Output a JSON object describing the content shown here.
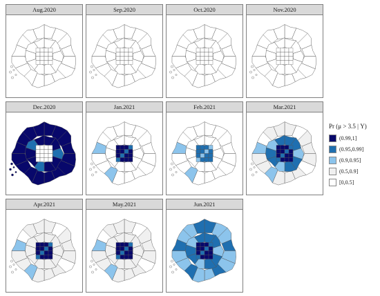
{
  "legend": {
    "title": "Pr (μ > 3.5 | Y)",
    "items": [
      {
        "label": "(0.99,1]",
        "color": "#08086b"
      },
      {
        "label": "(0.95,0.99]",
        "color": "#1f6fb0"
      },
      {
        "label": "(0.9,0.95]",
        "color": "#8cc4ec"
      },
      {
        "label": "(0.5,0.9]",
        "color": "#f0f0f0"
      },
      {
        "label": "[0,0.5]",
        "color": "#ffffff"
      }
    ]
  },
  "panels": [
    {
      "title": "Aug.2020",
      "levels": {
        "outer": 0,
        "ring": 0,
        "center": 0,
        "periph": 0
      }
    },
    {
      "title": "Sep.2020",
      "levels": {
        "outer": 0,
        "ring": 0,
        "center": 0,
        "periph": 0
      }
    },
    {
      "title": "Oct.2020",
      "levels": {
        "outer": 0,
        "ring": 0,
        "center": 0,
        "periph": 0
      }
    },
    {
      "title": "Nov.2020",
      "levels": {
        "outer": 0,
        "ring": 0,
        "center": 0,
        "periph": 0
      }
    },
    {
      "title": "Dec.2020",
      "levels": {
        "outer": 4,
        "ring": 4,
        "center": 0,
        "periph": 3
      }
    },
    {
      "title": "Jan.2021",
      "levels": {
        "outer": 0,
        "ring": 0,
        "center": 4,
        "periph": 2
      }
    },
    {
      "title": "Feb.2021",
      "levels": {
        "outer": 0,
        "ring": 0,
        "center": 3,
        "periph": 2
      }
    },
    {
      "title": "Mar.2021",
      "levels": {
        "outer": 1,
        "ring": 3,
        "center": 4,
        "periph": 2
      }
    },
    {
      "title": "Apr.2021",
      "levels": {
        "outer": 1,
        "ring": 1,
        "center": 4,
        "periph": 2
      }
    },
    {
      "title": "May.2021",
      "levels": {
        "outer": 1,
        "ring": 1,
        "center": 4,
        "periph": 2
      }
    },
    {
      "title": "Jun.2021",
      "levels": {
        "outer": 2,
        "ring": 3,
        "center": 4,
        "periph": 3
      }
    }
  ]
}
